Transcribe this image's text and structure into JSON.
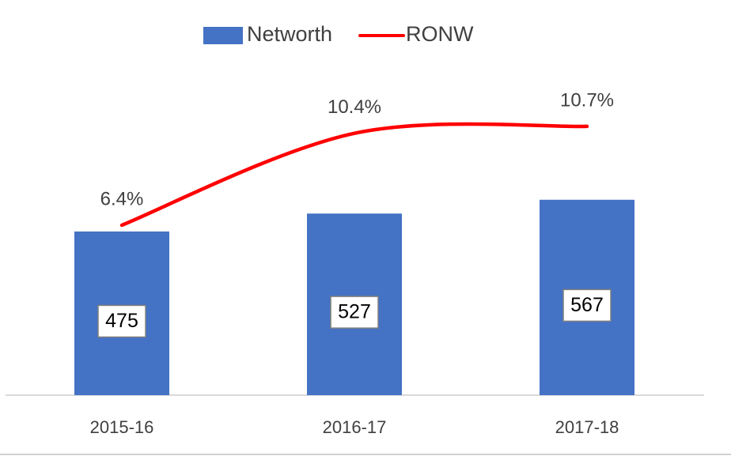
{
  "chart_data": {
    "type": "bar-line",
    "categories": [
      "2015-16",
      "2016-17",
      "2017-18"
    ],
    "series": [
      {
        "name": "Networth",
        "type": "bar",
        "color": "#4472c4",
        "values": [
          475,
          527,
          567
        ]
      },
      {
        "name": "RONW",
        "type": "line",
        "axis": "y2",
        "color": "#ff0000",
        "values": [
          6.4,
          10.4,
          10.7
        ],
        "value_labels": [
          "6.4%",
          "10.4%",
          "10.7%"
        ]
      }
    ],
    "ylim": [
      0,
      1000
    ],
    "y2lim": [
      -1,
      14
    ],
    "legend": "top"
  }
}
